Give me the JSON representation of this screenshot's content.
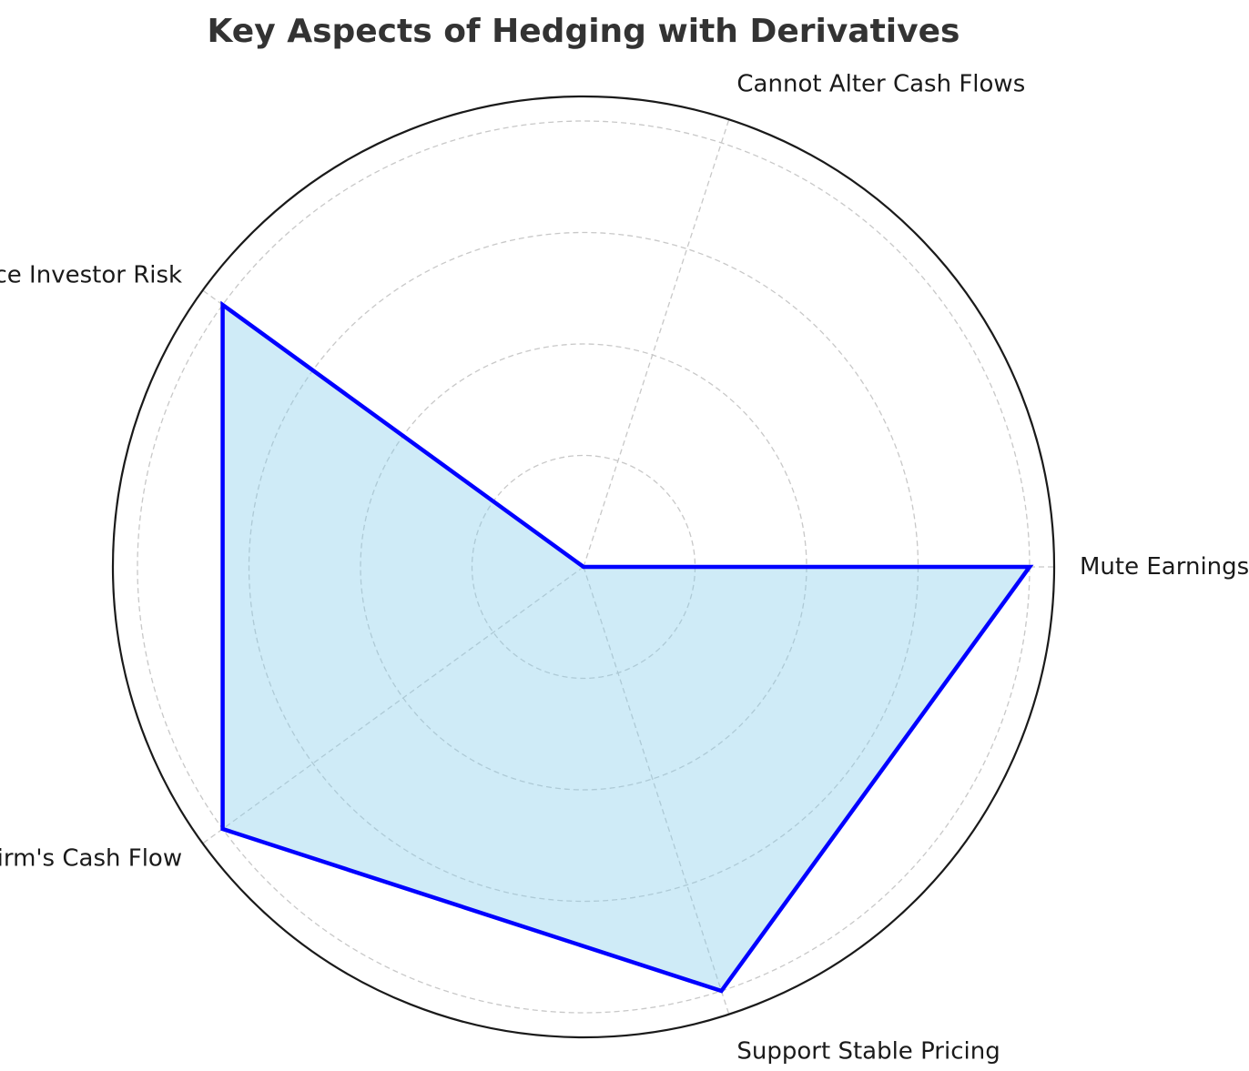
{
  "chart_data": {
    "type": "radar",
    "title": "Key Aspects of Hedging with Derivatives",
    "categories": [
      "Mute Earnings Volatility",
      "Cannot Alter Cash Flows",
      "Reduce Investor Risk",
      "Increase Firm's Cash Flow",
      "Support Stable Pricing"
    ],
    "series": [
      {
        "values": [
          1,
          0,
          1,
          1,
          1
        ]
      }
    ],
    "rlim": [
      0,
      1
    ],
    "rgrid": [
      0.25,
      0.5,
      0.75,
      1.0
    ],
    "radial_tick_labels_visible": false,
    "grid": true,
    "colors": {
      "line": "#0000ff",
      "fill": "#87ceeb",
      "grid": "#c8c8c8",
      "frame": "#1a1a1a",
      "title": "#333333",
      "label": "#1a1a1a"
    }
  }
}
